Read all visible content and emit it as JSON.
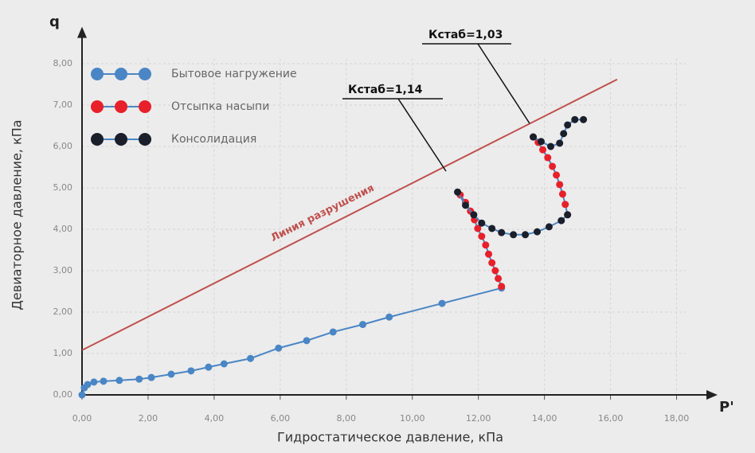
{
  "chart_data": {
    "type": "line",
    "y_axis_symbol": "q",
    "x_axis_symbol": "P'",
    "x_label": "Гидростатическое давление, кПа",
    "y_label": "Девиаторное давление, кПа",
    "xlim": [
      0,
      19
    ],
    "ylim": [
      0,
      8.7
    ],
    "xticks": [
      {
        "value": 0,
        "label": "0,00"
      },
      {
        "value": 2,
        "label": "2,00"
      },
      {
        "value": 4,
        "label": "4,00"
      },
      {
        "value": 6,
        "label": "6,00"
      },
      {
        "value": 8,
        "label": "8,00"
      },
      {
        "value": 10,
        "label": "10,00"
      },
      {
        "value": 12,
        "label": "12,00"
      },
      {
        "value": 14,
        "label": "14,00"
      },
      {
        "value": 16,
        "label": "16,00"
      },
      {
        "value": 18,
        "label": "18,00"
      }
    ],
    "yticks": [
      {
        "value": 0,
        "label": "0,00"
      },
      {
        "value": 1,
        "label": "1,00"
      },
      {
        "value": 2,
        "label": "2,00"
      },
      {
        "value": 3,
        "label": "3,00"
      },
      {
        "value": 4,
        "label": "4,00"
      },
      {
        "value": 5,
        "label": "5,00"
      },
      {
        "value": 6,
        "label": "6,00"
      },
      {
        "value": 7,
        "label": "7,00"
      },
      {
        "value": 8,
        "label": "8,00"
      }
    ],
    "grid": true,
    "line_color": "#4a86c5",
    "series": [
      {
        "name": "Бытовое нагружение",
        "color": "#4a86c5",
        "x": [
          0,
          0.07,
          0.17,
          0.36,
          0.65,
          1.13,
          1.73,
          2.1,
          2.7,
          3.3,
          3.83,
          4.3,
          5.1,
          5.95,
          6.8,
          7.6,
          8.5,
          9.3,
          10.9,
          12.7
        ],
        "y": [
          0,
          0.17,
          0.25,
          0.31,
          0.33,
          0.35,
          0.38,
          0.42,
          0.5,
          0.58,
          0.67,
          0.75,
          0.88,
          1.13,
          1.31,
          1.52,
          1.7,
          1.88,
          2.21,
          2.58
        ]
      },
      {
        "name": "Отсыпка насыпи",
        "color": "#e8202a",
        "x": [
          12.7,
          12.6,
          12.51,
          12.41,
          12.31,
          12.22,
          12.1,
          11.98,
          11.88,
          11.76,
          11.61,
          11.45,
          null,
          14.7,
          14.63,
          14.55,
          14.46,
          14.36,
          14.24,
          14.1,
          13.95,
          13.81,
          13.66
        ],
        "y": [
          2.62,
          2.81,
          3.0,
          3.19,
          3.4,
          3.62,
          3.83,
          4.02,
          4.23,
          4.44,
          4.65,
          4.83,
          null,
          4.35,
          4.6,
          4.85,
          5.08,
          5.31,
          5.52,
          5.73,
          5.92,
          6.1,
          6.23
        ]
      },
      {
        "name": "Консолидация",
        "color": "#1a1f2b",
        "x": [
          11.37,
          11.61,
          11.86,
          12.1,
          12.41,
          12.7,
          13.06,
          13.42,
          13.78,
          14.14,
          14.51,
          14.7,
          null,
          13.66,
          13.9,
          14.19,
          14.46,
          14.58,
          14.7,
          14.92,
          15.18
        ],
        "y": [
          4.9,
          4.58,
          4.35,
          4.15,
          4.02,
          3.92,
          3.87,
          3.87,
          3.94,
          4.06,
          4.21,
          4.35,
          null,
          6.23,
          6.12,
          6.0,
          6.08,
          6.31,
          6.52,
          6.65,
          6.65
        ]
      }
    ],
    "failure_line": {
      "label": "Линия разрушения",
      "color": "#c0504d",
      "x": [
        0,
        16.2
      ],
      "y": [
        1.08,
        7.62
      ]
    },
    "annotations": [
      "Кстаб=1,14",
      "Кстаб=1,03"
    ]
  }
}
